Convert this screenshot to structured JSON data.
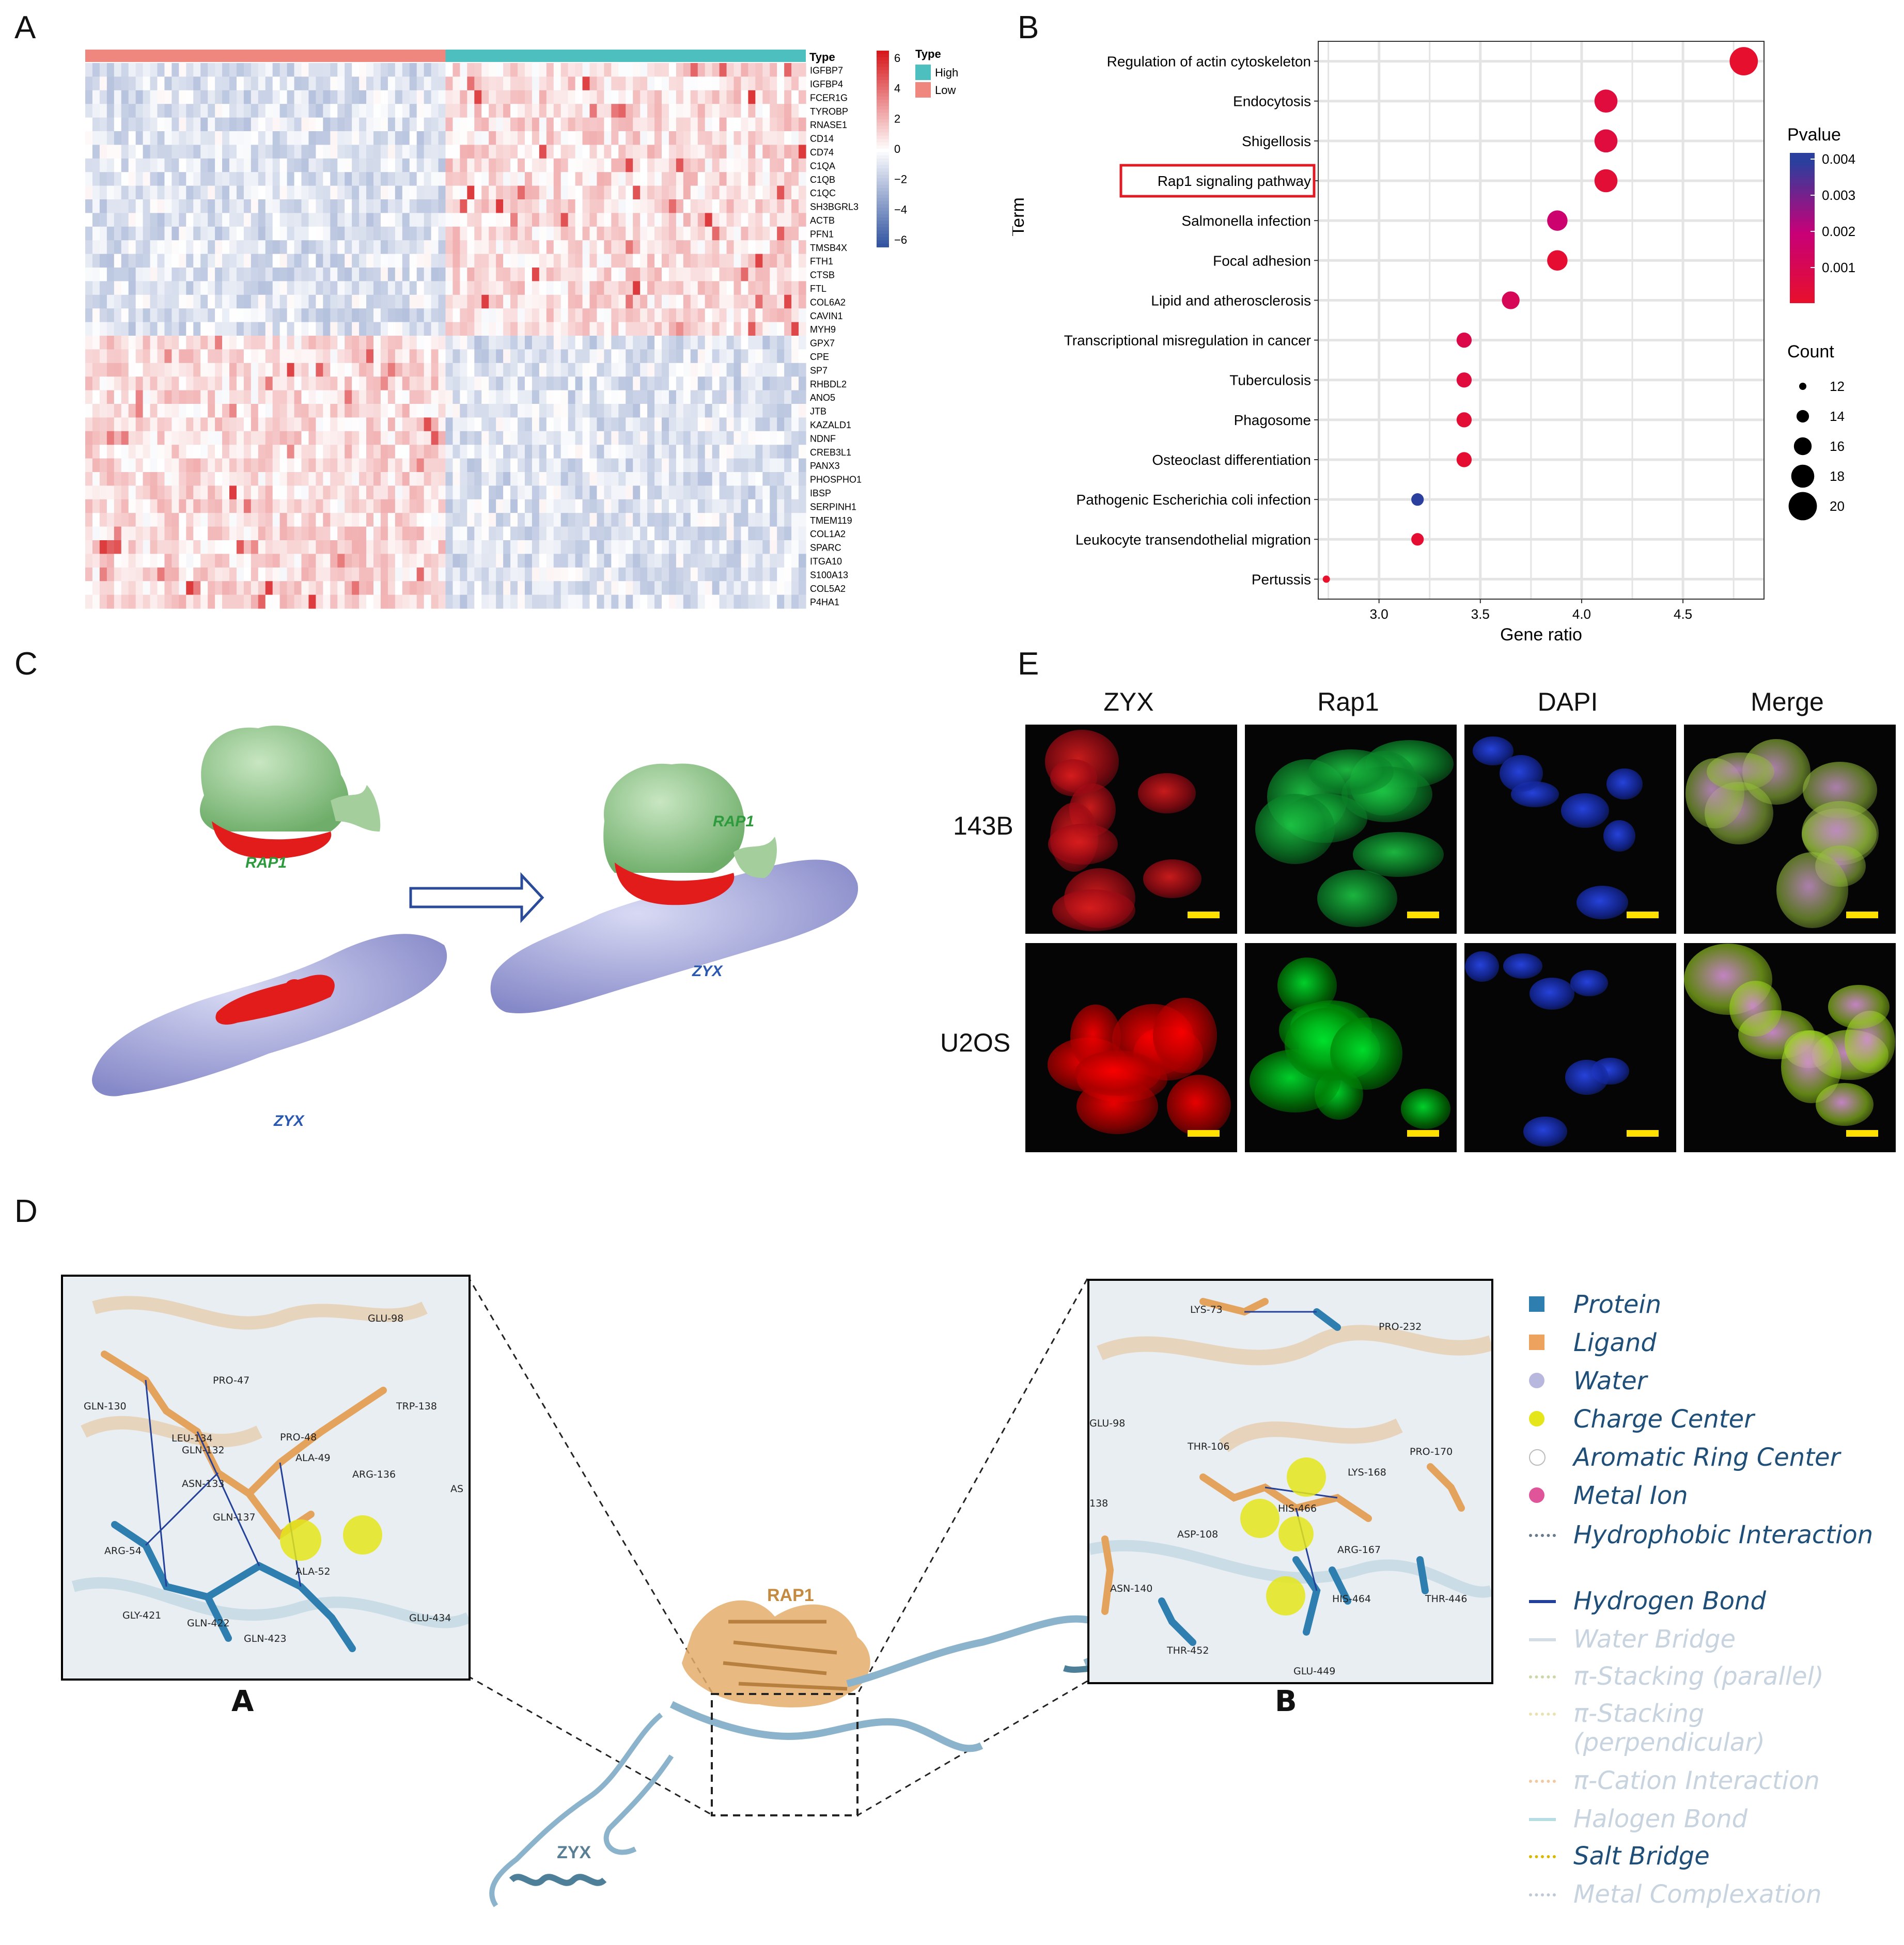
{
  "panels": {
    "A": "A",
    "B": "B",
    "C": "C",
    "D": "D",
    "E": "E"
  },
  "heatmap": {
    "type_header": "Type",
    "legend_title": "Type",
    "groups": [
      {
        "name": "High",
        "color": "#4dbfbf"
      },
      {
        "name": "Low",
        "color": "#f0877f"
      }
    ],
    "scale_ticks": [
      "6",
      "4",
      "2",
      "0",
      "−2",
      "−4",
      "−6"
    ],
    "genes": [
      "IGFBP7",
      "IGFBP4",
      "FCER1G",
      "TYROBP",
      "RNASE1",
      "CD14",
      "CD74",
      "C1QA",
      "C1QB",
      "C1QC",
      "SH3BGRL3",
      "ACTB",
      "PFN1",
      "TMSB4X",
      "FTH1",
      "CTSB",
      "FTL",
      "COL6A2",
      "CAVIN1",
      "MYH9",
      "GPX7",
      "CPE",
      "SP7",
      "RHBDL2",
      "ANO5",
      "JTB",
      "KAZALD1",
      "NDNF",
      "CREB3L1",
      "PANX3",
      "PHOSPHO1",
      "IBSP",
      "SERPINH1",
      "TMEM119",
      "COL1A2",
      "SPARC",
      "ITGA10",
      "S100A13",
      "COL5A2",
      "P4HA1"
    ],
    "n_low": 50,
    "n_high": 50,
    "colors": {
      "high": "#d7191c",
      "mid": "#ffffff",
      "low": "#2c4f9e"
    }
  },
  "chart_data": {
    "type": "scatter",
    "title": "",
    "xlabel": "Gene ratio",
    "ylabel": "Term",
    "xlim": [
      2.7,
      4.9
    ],
    "x_ticks": [
      "3.0",
      "3.5",
      "4.0",
      "4.5"
    ],
    "grid": true,
    "legend_placement": "right",
    "highlighted_term": "Rap1 signaling pathway",
    "points": [
      {
        "term": "Regulation of actin cytoskeleton",
        "x": 4.8,
        "count": 20,
        "pvalue": 0.0002
      },
      {
        "term": "Endocytosis",
        "x": 4.12,
        "count": 18,
        "pvalue": 0.0006
      },
      {
        "term": "Shigellosis",
        "x": 4.12,
        "count": 18,
        "pvalue": 0.0006
      },
      {
        "term": "Rap1 signaling pathway",
        "x": 4.12,
        "count": 18,
        "pvalue": 0.0004
      },
      {
        "term": "Salmonella infection",
        "x": 3.88,
        "count": 17,
        "pvalue": 0.0018
      },
      {
        "term": "Focal adhesion",
        "x": 3.88,
        "count": 17,
        "pvalue": 0.0003
      },
      {
        "term": "Lipid and atherosclerosis",
        "x": 3.65,
        "count": 16,
        "pvalue": 0.0012
      },
      {
        "term": "Transcriptional misregulation in cancer",
        "x": 3.42,
        "count": 15,
        "pvalue": 0.0009
      },
      {
        "term": "Tuberculosis",
        "x": 3.42,
        "count": 15,
        "pvalue": 0.0006
      },
      {
        "term": "Phagosome",
        "x": 3.42,
        "count": 15,
        "pvalue": 0.0004
      },
      {
        "term": "Osteoclast differentiation",
        "x": 3.42,
        "count": 15,
        "pvalue": 0.0003
      },
      {
        "term": "Pathogenic Escherichia coli infection",
        "x": 3.19,
        "count": 14,
        "pvalue": 0.0041
      },
      {
        "term": "Leukocyte transendothelial migration",
        "x": 3.19,
        "count": 14,
        "pvalue": 0.0003
      },
      {
        "term": "Pertussis",
        "x": 2.74,
        "count": 12,
        "pvalue": 0.0001
      }
    ],
    "pvalue_legend": {
      "title": "Pvalue",
      "ticks": [
        "0.004",
        "0.003",
        "0.002",
        "0.001"
      ],
      "high_color": "#2a3f9e",
      "low_color": "#e8102a"
    },
    "count_legend": {
      "title": "Count",
      "values": [
        12,
        14,
        16,
        18,
        20
      ]
    }
  },
  "docking": {
    "rap1_label": "RAP1",
    "zyx_label": "ZYX"
  },
  "micro": {
    "columns": [
      "ZYX",
      "Rap1",
      "DAPI",
      "Merge"
    ],
    "rows": [
      "143B",
      "U2OS"
    ]
  },
  "interactions": {
    "rap1_label": "RAP1",
    "zyx_label": "ZYX",
    "inset_labels": [
      "A",
      "B"
    ],
    "inset_a_residues": [
      "GLU-98",
      "PRO-47",
      "GLN-130",
      "LEU-134",
      "GLN-132",
      "PRO-48",
      "ALA-49",
      "TRP-138",
      "ASN-133",
      "ARG-136",
      "GLN-137",
      "AS",
      "ARG-54",
      "ALA-52",
      "GLY-421",
      "GLN-422",
      "GLN-423",
      "GLU-434"
    ],
    "inset_b_residues": [
      "LYS-73",
      "PRO-232",
      "GLU-98",
      "THR-106",
      "LYS-168",
      "PRO-170",
      "HIS-466",
      "ASP-108",
      "ARG-167",
      "138",
      "ASN-140",
      "HIS-464",
      "THR-446",
      "THR-452",
      "GLU-449"
    ],
    "legend": [
      {
        "label": "Protein",
        "kind": "square",
        "color": "#2e7fb0",
        "faded": false
      },
      {
        "label": "Ligand",
        "kind": "square",
        "color": "#eda35e",
        "faded": false
      },
      {
        "label": "Water",
        "kind": "dot",
        "color": "#b8b8de",
        "faded": false
      },
      {
        "label": "Charge Center",
        "kind": "dot",
        "color": "#e4e61a",
        "faded": false
      },
      {
        "label": "Aromatic Ring Center",
        "kind": "ring",
        "color": "#999999",
        "faded": false
      },
      {
        "label": "Metal Ion",
        "kind": "dot",
        "color": "#e0559a",
        "faded": false
      },
      {
        "label": "Hydrophobic Interaction",
        "kind": "dotted",
        "color": "#6a7a8a",
        "faded": false
      },
      {
        "label": "Hydrogen Bond",
        "kind": "solid",
        "color": "#23409a",
        "faded": false
      },
      {
        "label": "Water Bridge",
        "kind": "solid",
        "color": "#d4dde6",
        "faded": true
      },
      {
        "label": "π-Stacking (parallel)",
        "kind": "dotted",
        "color": "#c9d8a5",
        "faded": true
      },
      {
        "label": "π-Stacking (perpendicular)",
        "kind": "dotted",
        "color": "#e8e2b0",
        "faded": true
      },
      {
        "label": "π-Cation Interaction",
        "kind": "dotted",
        "color": "#f2c8a0",
        "faded": true
      },
      {
        "label": "Halogen Bond",
        "kind": "solid",
        "color": "#b6dde4",
        "faded": true
      },
      {
        "label": "Salt Bridge",
        "kind": "dotted",
        "color": "#d9b800",
        "faded": false
      },
      {
        "label": "Metal Complexation",
        "kind": "dotted",
        "color": "#bfc8d6",
        "faded": true
      }
    ]
  }
}
